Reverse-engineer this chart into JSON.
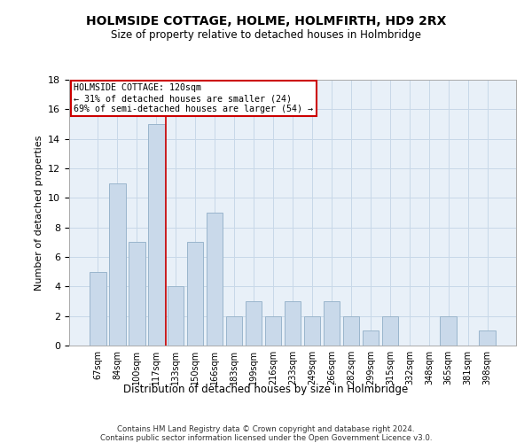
{
  "title": "HOLMSIDE COTTAGE, HOLME, HOLMFIRTH, HD9 2RX",
  "subtitle": "Size of property relative to detached houses in Holmbridge",
  "xlabel": "Distribution of detached houses by size in Holmbridge",
  "ylabel": "Number of detached properties",
  "footer1": "Contains HM Land Registry data © Crown copyright and database right 2024.",
  "footer2": "Contains public sector information licensed under the Open Government Licence v3.0.",
  "categories": [
    "67sqm",
    "84sqm",
    "100sqm",
    "117sqm",
    "133sqm",
    "150sqm",
    "166sqm",
    "183sqm",
    "199sqm",
    "216sqm",
    "233sqm",
    "249sqm",
    "266sqm",
    "282sqm",
    "299sqm",
    "315sqm",
    "332sqm",
    "348sqm",
    "365sqm",
    "381sqm",
    "398sqm"
  ],
  "values": [
    5,
    11,
    7,
    15,
    4,
    7,
    9,
    2,
    3,
    2,
    3,
    2,
    3,
    2,
    1,
    2,
    0,
    0,
    2,
    0,
    1
  ],
  "bar_color": "#c9d9ea",
  "bar_edge_color": "#9ab5cc",
  "grid_color": "#c8d8e8",
  "background_color": "#e8f0f8",
  "annotation_text": "HOLMSIDE COTTAGE: 120sqm\n← 31% of detached houses are smaller (24)\n69% of semi-detached houses are larger (54) →",
  "vline_color": "#cc0000",
  "vline_x": 3.5,
  "annotation_box_edgecolor": "#cc0000",
  "ylim": [
    0,
    18
  ],
  "yticks": [
    0,
    2,
    4,
    6,
    8,
    10,
    12,
    14,
    16,
    18
  ]
}
